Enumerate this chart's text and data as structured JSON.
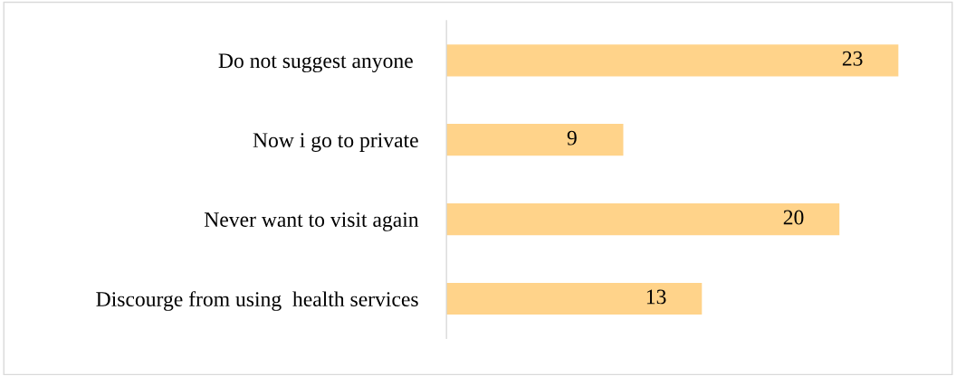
{
  "chart_data": {
    "type": "bar",
    "orientation": "horizontal",
    "categories": [
      "Do not suggest anyone ",
      "Now i go to private",
      "Never want to visit again",
      "Discourge from using  health services"
    ],
    "values": [
      23,
      9,
      20,
      13
    ],
    "color": "#ffd38a",
    "data_labels": true,
    "tick_labels": "y",
    "grid": false,
    "legend": false
  }
}
